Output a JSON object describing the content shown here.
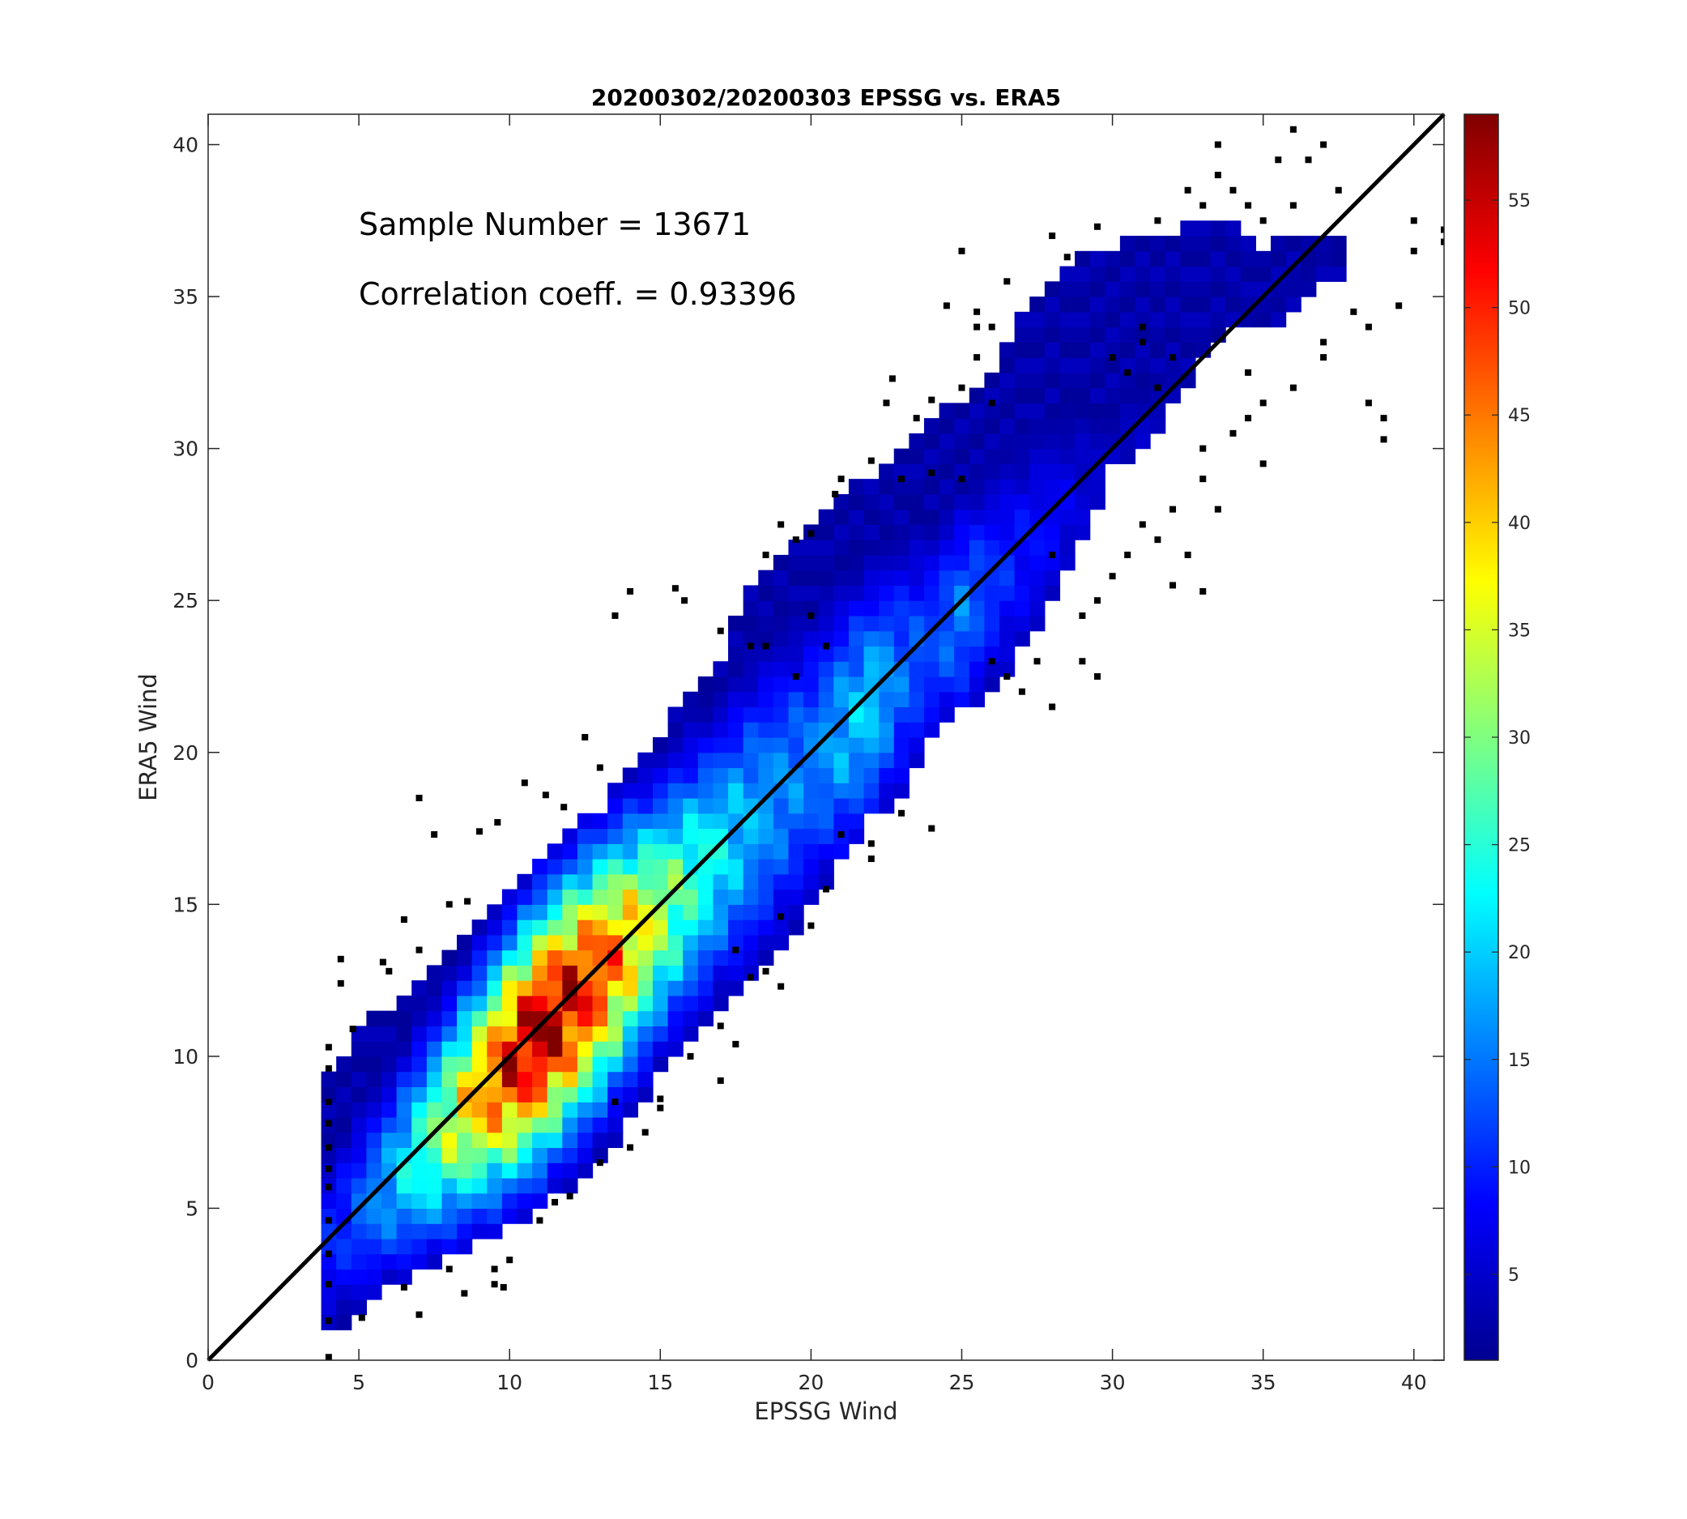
{
  "chart_data": {
    "type": "heatmap",
    "title": "20200302/20200303 EPSSG vs. ERA5",
    "xlabel": "EPSSG Wind",
    "ylabel": "ERA5 Wind",
    "xlim": [
      0,
      41
    ],
    "ylim": [
      0,
      41
    ],
    "xticks": [
      0,
      5,
      10,
      15,
      20,
      25,
      30,
      35,
      40
    ],
    "yticks": [
      0,
      5,
      10,
      15,
      20,
      25,
      30,
      35,
      40
    ],
    "annotations": [
      "Sample Number = 13671",
      "Correlation coeff. = 0.93396"
    ],
    "reference_line": {
      "from": [
        0,
        0
      ],
      "to": [
        41,
        41
      ],
      "color": "#000000"
    },
    "colorbar": {
      "colormap": "jet",
      "range": [
        1,
        59
      ],
      "ticks": [
        5,
        10,
        15,
        20,
        25,
        30,
        35,
        40,
        45,
        50,
        55
      ]
    },
    "density_profile": [
      {
        "x": 4.3,
        "lo": 1.0,
        "hi": 9.5,
        "peak": 10
      },
      {
        "x": 5.0,
        "lo": 1.5,
        "hi": 10.6,
        "peak": 13
      },
      {
        "x": 6.0,
        "lo": 2.5,
        "hi": 11.5,
        "peak": 18
      },
      {
        "x": 7.0,
        "lo": 3.0,
        "hi": 12.5,
        "peak": 25
      },
      {
        "x": 8.0,
        "lo": 3.5,
        "hi": 13.5,
        "peak": 33
      },
      {
        "x": 9.0,
        "lo": 4.0,
        "hi": 14.5,
        "peak": 42
      },
      {
        "x": 10.0,
        "lo": 4.5,
        "hi": 15.5,
        "peak": 52
      },
      {
        "x": 11.0,
        "lo": 5.2,
        "hi": 16.5,
        "peak": 57
      },
      {
        "x": 12.0,
        "lo": 5.8,
        "hi": 17.2,
        "peak": 54
      },
      {
        "x": 13.0,
        "lo": 6.5,
        "hi": 18.0,
        "peak": 48
      },
      {
        "x": 14.0,
        "lo": 8.0,
        "hi": 19.3,
        "peak": 40
      },
      {
        "x": 15.0,
        "lo": 9.5,
        "hi": 20.5,
        "peak": 32
      },
      {
        "x": 16.0,
        "lo": 10.5,
        "hi": 22.0,
        "peak": 26
      },
      {
        "x": 17.0,
        "lo": 11.5,
        "hi": 23.0,
        "peak": 22
      },
      {
        "x": 18.0,
        "lo": 12.5,
        "hi": 25.5,
        "peak": 18
      },
      {
        "x": 19.0,
        "lo": 13.5,
        "hi": 26.5,
        "peak": 16
      },
      {
        "x": 20.0,
        "lo": 15.0,
        "hi": 27.5,
        "peak": 15
      },
      {
        "x": 21.0,
        "lo": 16.5,
        "hi": 28.5,
        "peak": 18
      },
      {
        "x": 22.0,
        "lo": 18.0,
        "hi": 29.0,
        "peak": 20
      },
      {
        "x": 23.0,
        "lo": 18.5,
        "hi": 30.0,
        "peak": 14
      },
      {
        "x": 24.0,
        "lo": 20.5,
        "hi": 31.0,
        "peak": 12
      },
      {
        "x": 25.0,
        "lo": 21.5,
        "hi": 31.5,
        "peak": 15
      },
      {
        "x": 26.0,
        "lo": 22.0,
        "hi": 32.5,
        "peak": 11
      },
      {
        "x": 27.0,
        "lo": 23.5,
        "hi": 34.5,
        "peak": 9
      },
      {
        "x": 28.0,
        "lo": 25.0,
        "hi": 35.5,
        "peak": 8
      },
      {
        "x": 29.0,
        "lo": 27.0,
        "hi": 36.5,
        "peak": 6
      },
      {
        "x": 30.0,
        "lo": 29.5,
        "hi": 36.5,
        "peak": 5
      },
      {
        "x": 31.0,
        "lo": 30.0,
        "hi": 37.0,
        "peak": 5
      },
      {
        "x": 32.0,
        "lo": 31.5,
        "hi": 37.0,
        "peak": 4
      },
      {
        "x": 33.0,
        "lo": 33.0,
        "hi": 37.5,
        "peak": 4
      },
      {
        "x": 34.0,
        "lo": 34.0,
        "hi": 37.5,
        "peak": 4
      },
      {
        "x": 35.0,
        "lo": 34.0,
        "hi": 36.5,
        "peak": 3
      },
      {
        "x": 36.0,
        "lo": 34.5,
        "hi": 37.0,
        "peak": 3
      },
      {
        "x": 37.0,
        "lo": 35.5,
        "hi": 37.0,
        "peak": 3
      }
    ],
    "sparse_points": [
      [
        4.0,
        0.1
      ],
      [
        4.0,
        1.3
      ],
      [
        4.0,
        2.5
      ],
      [
        4.0,
        3.5
      ],
      [
        4.0,
        4.6
      ],
      [
        4.0,
        5.7
      ],
      [
        4.0,
        6.3
      ],
      [
        4.0,
        7.0
      ],
      [
        4.0,
        7.8
      ],
      [
        4.0,
        8.5
      ],
      [
        4.0,
        9.6
      ],
      [
        4.0,
        10.3
      ],
      [
        4.4,
        12.4
      ],
      [
        4.4,
        13.2
      ],
      [
        4.8,
        10.9
      ],
      [
        5.8,
        13.1
      ],
      [
        6.0,
        12.8
      ],
      [
        6.5,
        14.5
      ],
      [
        7.0,
        13.5
      ],
      [
        7.5,
        17.3
      ],
      [
        7.0,
        18.5
      ],
      [
        8.0,
        15.0
      ],
      [
        8.6,
        15.1
      ],
      [
        9.0,
        17.4
      ],
      [
        9.6,
        17.7
      ],
      [
        10.5,
        19.0
      ],
      [
        11.2,
        18.6
      ],
      [
        11.8,
        18.2
      ],
      [
        12.5,
        20.5
      ],
      [
        13.0,
        19.5
      ],
      [
        5.1,
        1.4
      ],
      [
        6.5,
        2.4
      ],
      [
        7.0,
        1.5
      ],
      [
        8.0,
        3.0
      ],
      [
        8.5,
        2.2
      ],
      [
        9.5,
        2.5
      ],
      [
        9.5,
        3.0
      ],
      [
        9.8,
        2.4
      ],
      [
        10.0,
        3.3
      ],
      [
        11.0,
        4.6
      ],
      [
        11.5,
        5.2
      ],
      [
        12.0,
        5.4
      ],
      [
        13.0,
        6.5
      ],
      [
        13.5,
        8.5
      ],
      [
        14.5,
        7.5
      ],
      [
        15.0,
        8.3
      ],
      [
        15.0,
        8.6
      ],
      [
        14.0,
        7.0
      ],
      [
        16.0,
        10.0
      ],
      [
        17.0,
        9.2
      ],
      [
        17.5,
        10.4
      ],
      [
        17.0,
        11.0
      ],
      [
        17.5,
        13.5
      ],
      [
        18.0,
        12.6
      ],
      [
        18.5,
        12.8
      ],
      [
        19.0,
        12.3
      ],
      [
        19.0,
        14.6
      ],
      [
        20.0,
        14.3
      ],
      [
        20.5,
        15.5
      ],
      [
        21.0,
        17.3
      ],
      [
        22.0,
        16.5
      ],
      [
        22.0,
        17.0
      ],
      [
        23.0,
        18.0
      ],
      [
        24.0,
        17.5
      ],
      [
        13.5,
        24.5
      ],
      [
        14.0,
        25.3
      ],
      [
        15.5,
        25.4
      ],
      [
        15.8,
        25.0
      ],
      [
        17.0,
        24.0
      ],
      [
        18.0,
        23.5
      ],
      [
        18.5,
        23.5
      ],
      [
        19.5,
        22.5
      ],
      [
        20.0,
        24.5
      ],
      [
        20.5,
        23.5
      ],
      [
        18.5,
        26.5
      ],
      [
        19.0,
        27.5
      ],
      [
        19.5,
        27.0
      ],
      [
        20.0,
        27.2
      ],
      [
        20.8,
        28.5
      ],
      [
        21.0,
        29.0
      ],
      [
        22.0,
        29.6
      ],
      [
        23.0,
        29.0
      ],
      [
        24.0,
        29.2
      ],
      [
        25.0,
        29.0
      ],
      [
        22.5,
        31.5
      ],
      [
        22.7,
        32.3
      ],
      [
        23.5,
        31.0
      ],
      [
        24.0,
        31.6
      ],
      [
        25.0,
        32.0
      ],
      [
        25.5,
        33.0
      ],
      [
        25.5,
        34.0
      ],
      [
        26.0,
        34.0
      ],
      [
        26.0,
        31.5
      ],
      [
        24.5,
        34.7
      ],
      [
        25.0,
        36.5
      ],
      [
        25.5,
        34.5
      ],
      [
        26.5,
        35.5
      ],
      [
        28.0,
        37.0
      ],
      [
        28.5,
        36.3
      ],
      [
        29.5,
        37.3
      ],
      [
        30.0,
        33.0
      ],
      [
        30.5,
        32.5
      ],
      [
        31.0,
        33.5
      ],
      [
        31.5,
        32.0
      ],
      [
        31.0,
        34.0
      ],
      [
        32.0,
        33.0
      ],
      [
        31.5,
        37.5
      ],
      [
        32.5,
        38.5
      ],
      [
        33.0,
        38.0
      ],
      [
        33.5,
        39.0
      ],
      [
        33.5,
        40.0
      ],
      [
        34.0,
        38.5
      ],
      [
        34.5,
        38.0
      ],
      [
        35.0,
        37.5
      ],
      [
        35.5,
        39.5
      ],
      [
        36.0,
        38.0
      ],
      [
        36.0,
        40.5
      ],
      [
        36.5,
        39.5
      ],
      [
        37.0,
        40.0
      ],
      [
        37.5,
        38.5
      ],
      [
        33.0,
        30.0
      ],
      [
        33.5,
        28.0
      ],
      [
        33.0,
        29.0
      ],
      [
        34.0,
        30.5
      ],
      [
        34.5,
        31.0
      ],
      [
        34.5,
        32.5
      ],
      [
        35.0,
        31.5
      ],
      [
        35.0,
        29.5
      ],
      [
        36.0,
        32.0
      ],
      [
        37.0,
        33.0
      ],
      [
        37.0,
        33.5
      ],
      [
        38.0,
        34.5
      ],
      [
        38.5,
        34.0
      ],
      [
        38.5,
        31.5
      ],
      [
        39.0,
        31.0
      ],
      [
        39.0,
        30.3
      ],
      [
        39.5,
        34.7
      ],
      [
        40.0,
        36.5
      ],
      [
        40.0,
        37.5
      ],
      [
        41.0,
        36.8
      ],
      [
        41.0,
        37.2
      ],
      [
        28.0,
        26.5
      ],
      [
        29.0,
        24.5
      ],
      [
        29.5,
        25.0
      ],
      [
        30.0,
        25.8
      ],
      [
        30.5,
        26.5
      ],
      [
        31.0,
        27.5
      ],
      [
        31.5,
        27.0
      ],
      [
        32.0,
        28.0
      ],
      [
        32.5,
        26.5
      ],
      [
        32.0,
        25.5
      ],
      [
        33.0,
        25.3
      ],
      [
        26.0,
        23.0
      ],
      [
        26.5,
        22.5
      ],
      [
        27.0,
        22.0
      ],
      [
        27.5,
        23.0
      ],
      [
        28.0,
        21.5
      ],
      [
        29.0,
        23.0
      ],
      [
        29.5,
        22.5
      ]
    ]
  }
}
